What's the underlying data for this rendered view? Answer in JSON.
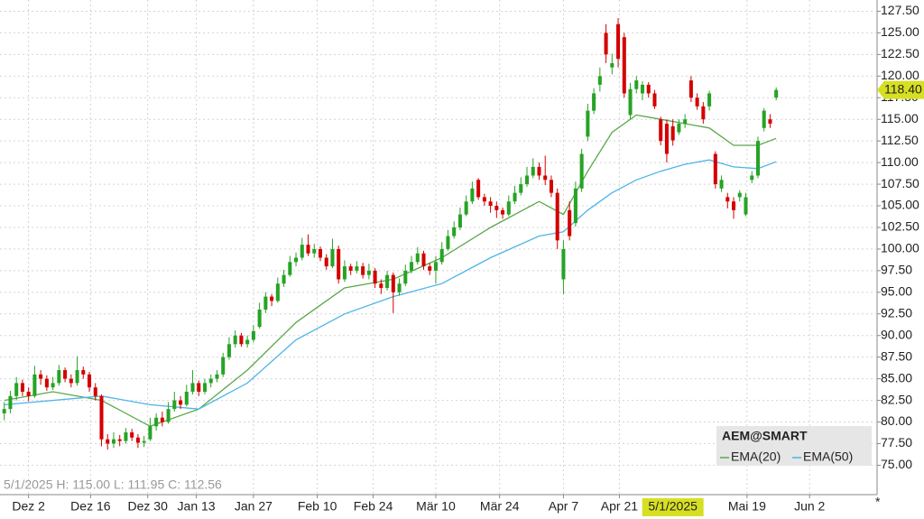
{
  "chart_data": {
    "type": "candlestick",
    "symbol": "AEM@SMART",
    "colors": {
      "up": "#26a325",
      "down": "#d40000"
    },
    "xlim": [
      -0.7,
      143.6
    ],
    "ylim": [
      71.6,
      128.8
    ],
    "grid": true,
    "xticks": [
      {
        "value": 4,
        "label": "Dez 2"
      },
      {
        "value": 14.2,
        "label": "Dez 16"
      },
      {
        "value": 23.6,
        "label": "Dez 30"
      },
      {
        "value": 31.6,
        "label": "Jan 13"
      },
      {
        "value": 41,
        "label": "Jan 27"
      },
      {
        "value": 51.5,
        "label": "Feb 10"
      },
      {
        "value": 60.7,
        "label": "Feb 24"
      },
      {
        "value": 71,
        "label": "Mär 10"
      },
      {
        "value": 81.5,
        "label": "Mär 24"
      },
      {
        "value": 92,
        "label": "Apr 7"
      },
      {
        "value": 101.2,
        "label": "Apr 21"
      },
      {
        "value": 122.2,
        "label": "Mai 19"
      },
      {
        "value": 132.5,
        "label": "Jun 2"
      }
    ],
    "crosshair_x": {
      "value": 110,
      "label": "5/1/2025"
    },
    "crosshair_info": "5/1/2025 H: 115.00 L: 111.95 C: 112.56",
    "last_price": {
      "value": 118.4,
      "label": "118.40"
    },
    "yticks": [
      {
        "value": 75,
        "label": "75.00"
      },
      {
        "value": 77.5,
        "label": "77.50"
      },
      {
        "value": 80,
        "label": "80.00"
      },
      {
        "value": 82.5,
        "label": "82.50"
      },
      {
        "value": 85,
        "label": "85.00"
      },
      {
        "value": 87.5,
        "label": "87.50"
      },
      {
        "value": 90,
        "label": "90.00"
      },
      {
        "value": 92.5,
        "label": "92.50"
      },
      {
        "value": 95,
        "label": "95.00"
      },
      {
        "value": 97.5,
        "label": "97.50"
      },
      {
        "value": 100,
        "label": "100.00"
      },
      {
        "value": 102.5,
        "label": "102.50"
      },
      {
        "value": 105,
        "label": "105.00"
      },
      {
        "value": 107.5,
        "label": "107.50"
      },
      {
        "value": 110,
        "label": "110.00"
      },
      {
        "value": 112.5,
        "label": "112.50"
      },
      {
        "value": 115,
        "label": "115.00"
      },
      {
        "value": 117.5,
        "label": "117.50"
      },
      {
        "value": 120,
        "label": "120.00"
      },
      {
        "value": 122.5,
        "label": "122.50"
      },
      {
        "value": 125,
        "label": "125.00"
      },
      {
        "value": 127.5,
        "label": "127.50"
      }
    ],
    "ohlc": [
      [
        81,
        82.3,
        80.2,
        81.5
      ],
      [
        81.5,
        83.6,
        81,
        83
      ],
      [
        83,
        85.2,
        82.5,
        84.5
      ],
      [
        84.5,
        84.9,
        83,
        83.5
      ],
      [
        83.5,
        84,
        82.4,
        83
      ],
      [
        83,
        86.5,
        82.8,
        85.5
      ],
      [
        85.5,
        86,
        84.3,
        85
      ],
      [
        85,
        85.4,
        83.6,
        84
      ],
      [
        84,
        85.2,
        83.7,
        84.5
      ],
      [
        84.5,
        86.6,
        84.2,
        86
      ],
      [
        86,
        86.3,
        84.6,
        85
      ],
      [
        85,
        85.5,
        84,
        84.5
      ],
      [
        84.5,
        87.6,
        84.2,
        86
      ],
      [
        86,
        86.4,
        85,
        85.5
      ],
      [
        85.5,
        85.8,
        83.5,
        84
      ],
      [
        84,
        84.5,
        82.5,
        83
      ],
      [
        83,
        83.2,
        77.2,
        78
      ],
      [
        78,
        78.6,
        76.8,
        77.5
      ],
      [
        77.5,
        78.8,
        77,
        78
      ],
      [
        78,
        78.5,
        77.2,
        77.8
      ],
      [
        77.8,
        79.3,
        77.5,
        78.8
      ],
      [
        78.8,
        79.2,
        77.8,
        78.2
      ],
      [
        78.2,
        78.6,
        77,
        77.6
      ],
      [
        77.6,
        78.4,
        77.1,
        77.8
      ],
      [
        78,
        80.5,
        77.8,
        79.5
      ],
      [
        79.5,
        81,
        79,
        80.5
      ],
      [
        80.5,
        81.2,
        79.5,
        80
      ],
      [
        80,
        82.3,
        79.8,
        81.5
      ],
      [
        81.5,
        83.5,
        81.2,
        82.5
      ],
      [
        82.5,
        83,
        81.5,
        82
      ],
      [
        82,
        84.3,
        81.8,
        83.5
      ],
      [
        83.5,
        86,
        83.2,
        84.5
      ],
      [
        84.5,
        84.8,
        83,
        83.5
      ],
      [
        83.5,
        85,
        83.2,
        84.5
      ],
      [
        84.5,
        85.5,
        84,
        85
      ],
      [
        85,
        86,
        84.6,
        85.5
      ],
      [
        85.5,
        88,
        85.2,
        87.5
      ],
      [
        87.5,
        89.8,
        87.2,
        89
      ],
      [
        89,
        90.6,
        88.6,
        90
      ],
      [
        90,
        90.3,
        88.7,
        89
      ],
      [
        89,
        90,
        88.6,
        89.5
      ],
      [
        89.5,
        91.2,
        89.2,
        90.5
      ],
      [
        91,
        93.8,
        90.8,
        93
      ],
      [
        93,
        95,
        92.6,
        94.5
      ],
      [
        94.5,
        94.8,
        93.4,
        94
      ],
      [
        94,
        96.7,
        93.8,
        96
      ],
      [
        96,
        97.6,
        95.6,
        97
      ],
      [
        97,
        99.2,
        96.8,
        98.5
      ],
      [
        98.5,
        99.6,
        98,
        99
      ],
      [
        99,
        101.3,
        98.7,
        100.5
      ],
      [
        100.5,
        101.7,
        99.2,
        99.5
      ],
      [
        99.5,
        100.6,
        99,
        100
      ],
      [
        100,
        100.3,
        98.6,
        99
      ],
      [
        99,
        99.4,
        97.6,
        98
      ],
      [
        98,
        101.2,
        97.8,
        100
      ],
      [
        100,
        100.4,
        96,
        96.5
      ],
      [
        96.5,
        98.7,
        96.2,
        98
      ],
      [
        98,
        98.3,
        97,
        97.5
      ],
      [
        97.5,
        98.6,
        97.2,
        98
      ],
      [
        98,
        98.4,
        96.6,
        97
      ],
      [
        97,
        98.3,
        96.5,
        97.5
      ],
      [
        97.5,
        97.8,
        95.5,
        96
      ],
      [
        96,
        96.5,
        94.8,
        95.5
      ],
      [
        95.5,
        97.5,
        95.2,
        97
      ],
      [
        97,
        97.3,
        92.6,
        95
      ],
      [
        95,
        96.6,
        94.6,
        96
      ],
      [
        96,
        98.2,
        95.7,
        97.5
      ],
      [
        97.5,
        99.2,
        97.2,
        98.5
      ],
      [
        98.5,
        100.2,
        98.2,
        99.5
      ],
      [
        99.5,
        99.8,
        97.6,
        98
      ],
      [
        98,
        98.4,
        97,
        97.5
      ],
      [
        97.5,
        99.2,
        96,
        98.5
      ],
      [
        98.5,
        100.8,
        98.2,
        100
      ],
      [
        100,
        102.2,
        99.8,
        101.5
      ],
      [
        101.5,
        103.2,
        101.2,
        102.5
      ],
      [
        102.5,
        104.8,
        102.2,
        104
      ],
      [
        104,
        106.2,
        103.8,
        105.5
      ],
      [
        105.5,
        107.8,
        105.2,
        107
      ],
      [
        108,
        108.2,
        105.7,
        106
      ],
      [
        106,
        106.4,
        105,
        105.5
      ],
      [
        105.5,
        106,
        104.2,
        105
      ],
      [
        105,
        105.5,
        103.6,
        104.5
      ],
      [
        104.5,
        104.8,
        103.5,
        104
      ],
      [
        104,
        106.2,
        103.8,
        105.5
      ],
      [
        105.5,
        107.3,
        105.2,
        106.5
      ],
      [
        106.5,
        108.3,
        106.2,
        107.5
      ],
      [
        107.5,
        109.5,
        107.2,
        108.5
      ],
      [
        108.5,
        110.5,
        108.2,
        109.5
      ],
      [
        109.5,
        110,
        108,
        108.5
      ],
      [
        108.5,
        110.8,
        107.4,
        108
      ],
      [
        108,
        108.5,
        106,
        106.5
      ],
      [
        106.5,
        107,
        100,
        101
      ],
      [
        96.5,
        101,
        94.8,
        100
      ],
      [
        104.5,
        105.5,
        101,
        101.5
      ],
      [
        103,
        107.8,
        102.6,
        107
      ],
      [
        107,
        111.6,
        106.6,
        111
      ],
      [
        113,
        116.8,
        112.5,
        116
      ],
      [
        116,
        118.6,
        115.6,
        118
      ],
      [
        119,
        121,
        118.2,
        120
      ],
      [
        125,
        126,
        121.5,
        122.5
      ],
      [
        121,
        122.6,
        120.2,
        121.5
      ],
      [
        126,
        126.7,
        121,
        122
      ],
      [
        124.5,
        125,
        117.5,
        118
      ],
      [
        115.5,
        119.2,
        115,
        118.5
      ],
      [
        118.5,
        120,
        118,
        119.5
      ],
      [
        118,
        119.4,
        117.2,
        119
      ],
      [
        119,
        119.3,
        117.5,
        118
      ],
      [
        118,
        118.4,
        116.2,
        116.5
      ],
      [
        115,
        115.3,
        112,
        112.5
      ],
      [
        114.5,
        115,
        110,
        111
      ],
      [
        114.2,
        115,
        111.95,
        112.56
      ],
      [
        113.5,
        115,
        113.2,
        114.5
      ],
      [
        114.5,
        115.6,
        114,
        115
      ],
      [
        119.5,
        120,
        117,
        117.5
      ],
      [
        117.5,
        118,
        116.1,
        116.5
      ],
      [
        116.5,
        117,
        114.5,
        115
      ],
      [
        116.5,
        118.3,
        116,
        118
      ],
      [
        111,
        111.3,
        107,
        107.5
      ],
      [
        107,
        108.5,
        106.6,
        108
      ],
      [
        106,
        106.5,
        104.7,
        105.5
      ],
      [
        105.5,
        106,
        103.5,
        104.5
      ],
      [
        106,
        106.8,
        105.5,
        106.5
      ],
      [
        104,
        106.5,
        103.8,
        106
      ],
      [
        108,
        109,
        107.6,
        108.5
      ],
      [
        108.5,
        113,
        108.2,
        112.5
      ],
      [
        114,
        116.3,
        113.6,
        116
      ],
      [
        115,
        115.6,
        114,
        114.5
      ],
      [
        117.5,
        118.7,
        117.2,
        118.4
      ]
    ],
    "series": [
      {
        "name": "EMA(20)",
        "color": "#5aa84a",
        "x": [
          0,
          8,
          16,
          24,
          32,
          40,
          48,
          56,
          64,
          72,
          80,
          88,
          92,
          96,
          100,
          104,
          108,
          112,
          116,
          120,
          124,
          127
        ],
        "values": [
          82.5,
          83.5,
          82.5,
          79.5,
          81.5,
          86,
          91.5,
          95.5,
          96.5,
          99,
          102.5,
          105.5,
          104,
          109,
          113.5,
          115.5,
          115,
          114.5,
          114,
          112,
          112,
          112.8
        ]
      },
      {
        "name": "EMA(50)",
        "color": "#4db4e8",
        "x": [
          0,
          16,
          24,
          32,
          40,
          48,
          56,
          64,
          72,
          80,
          88,
          92,
          96,
          100,
          104,
          108,
          112,
          116,
          120,
          124,
          127
        ],
        "values": [
          82,
          83,
          82,
          81.5,
          84.5,
          89.5,
          92.5,
          94.5,
          96,
          99,
          101.5,
          102,
          104.5,
          106.5,
          108,
          109,
          109.8,
          110.3,
          109.5,
          109.3,
          110.1
        ]
      }
    ]
  }
}
